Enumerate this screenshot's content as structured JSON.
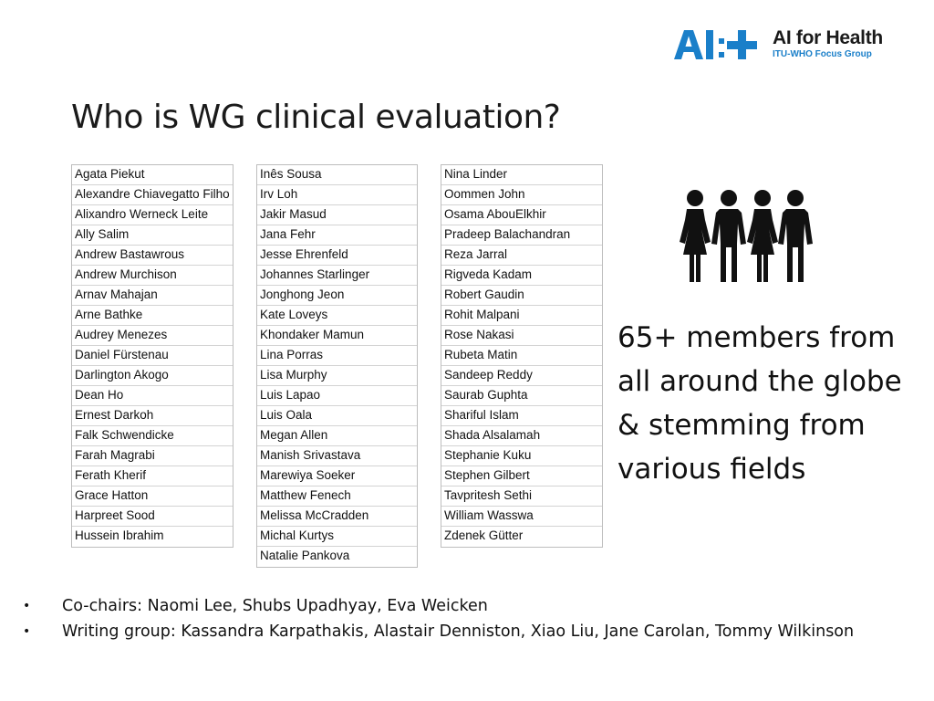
{
  "logo": {
    "mark_text": "AI:+",
    "title": "AI for Health",
    "subtitle": "ITU-WHO Focus Group",
    "colors": {
      "blue": "#1a7fc9",
      "dark": "#1a1a1a"
    }
  },
  "title": "Who is WG clinical evaluation?",
  "members_columns": [
    [
      "Agata Piekut",
      "Alexandre Chiavegatto Filho",
      "Alixandro Werneck Leite",
      "Ally Salim",
      "Andrew Bastawrous",
      "Andrew Murchison",
      "Arnav Mahajan",
      "Arne Bathke",
      "Audrey Menezes",
      "Daniel Fürstenau",
      "Darlington Akogo",
      "Dean Ho",
      "Ernest Darkoh",
      "Falk Schwendicke",
      "Farah Magrabi",
      "Ferath Kherif",
      "Grace Hatton",
      "Harpreet Sood",
      "Hussein Ibrahim"
    ],
    [
      "Inês Sousa",
      "Irv Loh",
      "Jakir Masud",
      "Jana Fehr",
      "Jesse Ehrenfeld",
      "Johannes Starlinger",
      "Jonghong Jeon",
      "Kate Loveys",
      "Khondaker Mamun",
      "Lina Porras",
      "Lisa Murphy",
      "Luis Lapao",
      "Luis Oala",
      "Megan Allen",
      "Manish Srivastava",
      "Marewiya Soeker",
      "Matthew Fenech",
      "Melissa McCradden",
      "Michal Kurtys",
      "Natalie Pankova"
    ],
    [
      "Nina Linder",
      "Oommen John",
      "Osama AbouElkhir",
      "Pradeep Balachandran",
      "Reza Jarral",
      "Rigveda Kadam",
      "Robert Gaudin",
      "Rohit Malpani",
      "Rose Nakasi",
      "Rubeta Matin",
      "Sandeep Reddy",
      "Saurab Guphta",
      "Shariful Islam",
      "Shada Alsalamah",
      "Stephanie Kuku",
      "Stephen Gilbert",
      "Tavpritesh Sethi",
      "William Wasswa",
      "Zdenek Gütter"
    ]
  ],
  "people_icon": "group-of-four-people-icon",
  "members_text": "65+ members from all around the globe & stemming from various fields",
  "bullets": [
    {
      "marker": "•",
      "text": "Co-chairs: Naomi Lee, Shubs Upadhyay, Eva Weicken"
    },
    {
      "marker": "•",
      "text": "Writing group: Kassandra Karpathakis, Alastair Denniston, Xiao Liu, Jane Carolan, Tommy Wilkinson"
    }
  ]
}
